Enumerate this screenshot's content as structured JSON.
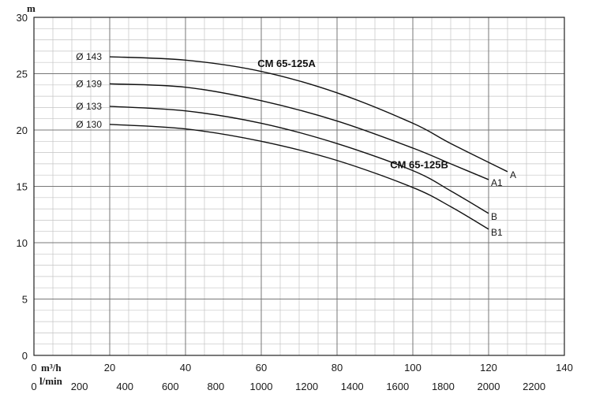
{
  "chart_data": {
    "type": "line",
    "y_unit": "m",
    "x_unit_primary": "m³/h",
    "x_unit_secondary": "l/min",
    "ylim": [
      0,
      30
    ],
    "xlim": [
      0,
      140
    ],
    "y_ticks": [
      "0",
      "5",
      "10",
      "15",
      "20",
      "25",
      "30"
    ],
    "x_ticks_primary": [
      "20",
      "40",
      "60",
      "80",
      "100",
      "120",
      "140"
    ],
    "x_ticks_secondary": [
      "0",
      "200",
      "400",
      "600",
      "800",
      "1000",
      "1200",
      "1400",
      "1600",
      "1800",
      "2000",
      "2200"
    ],
    "grid": true,
    "model_labels": [
      {
        "text": "CM 65-125A",
        "x": 59,
        "y": 25.6
      },
      {
        "text": "CM 65-125B",
        "x": 94,
        "y": 16.6
      }
    ],
    "series": [
      {
        "name": "Ø 143",
        "end_label": "A",
        "x": [
          20,
          40,
          60,
          80,
          100,
          110,
          125
        ],
        "y": [
          26.5,
          26.2,
          25.2,
          23.3,
          20.6,
          18.8,
          16.3
        ]
      },
      {
        "name": "Ø 139",
        "end_label": "A1",
        "x": [
          20,
          40,
          60,
          80,
          100,
          110,
          120
        ],
        "y": [
          24.1,
          23.8,
          22.6,
          20.8,
          18.4,
          17.0,
          15.6
        ]
      },
      {
        "name": "Ø 133",
        "end_label": "B",
        "x": [
          20,
          40,
          60,
          80,
          100,
          110,
          120
        ],
        "y": [
          22.1,
          21.7,
          20.6,
          18.8,
          16.4,
          14.6,
          12.6
        ]
      },
      {
        "name": "Ø 130",
        "end_label": "B1",
        "x": [
          20,
          40,
          60,
          80,
          100,
          110,
          120
        ],
        "y": [
          20.5,
          20.1,
          19.0,
          17.3,
          14.9,
          13.2,
          11.2
        ]
      }
    ]
  }
}
